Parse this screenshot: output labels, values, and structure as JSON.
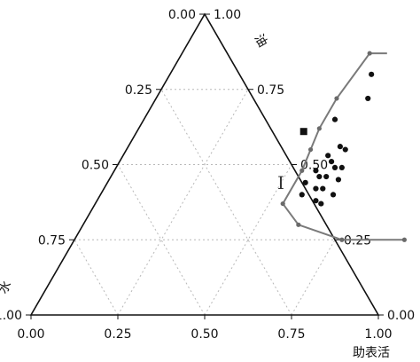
{
  "chart_data": {
    "type": "scatter",
    "subtype": "ternary",
    "axes": {
      "oil": {
        "label": "油",
        "ticks": [
          "0.00",
          "0.25",
          "0.50",
          "0.75",
          "1.00"
        ]
      },
      "water": {
        "label": "水",
        "ticks": [
          "0.00",
          "0.25",
          "0.50",
          "0.75",
          "1.00"
        ]
      },
      "surfactant": {
        "label": "助表活",
        "ticks": [
          "0.00",
          "0.25",
          "0.50",
          "0.75",
          "1.00"
        ]
      }
    },
    "grid": true,
    "grid_style": "dotted",
    "region_label": "I",
    "boundary": [
      {
        "surfactant": 0.54,
        "oil": 0.28
      },
      {
        "surfactant": 0.57,
        "oil": 0.42
      },
      {
        "surfactant": 0.56,
        "oil": 0.52
      },
      {
        "surfactant": 0.53,
        "oil": 0.61
      },
      {
        "surfactant": 0.53,
        "oil": 0.69
      },
      {
        "surfactant": 0.54,
        "oil": 0.75
      },
      {
        "surfactant": 0.69,
        "oil": 0.55
      },
      {
        "surfactant": 0.73,
        "oil": 0.64
      },
      {
        "surfactant": 0.72,
        "oil": 0.75
      },
      {
        "surfactant": 0.75,
        "oil": 0.75
      }
    ],
    "boundary_order": [
      2,
      1,
      0,
      6,
      7,
      8,
      9,
      4,
      3,
      5
    ],
    "boundary_path": [
      {
        "surfactant": 0.59,
        "oil": 0.87
      },
      {
        "surfactant": 0.54,
        "oil": 0.87
      },
      {
        "surfactant": 0.52,
        "oil": 0.72
      },
      {
        "surfactant": 0.52,
        "oil": 0.62
      },
      {
        "surfactant": 0.53,
        "oil": 0.55
      },
      {
        "surfactant": 0.54,
        "oil": 0.48
      },
      {
        "surfactant": 0.54,
        "oil": 0.37
      },
      {
        "surfactant": 0.62,
        "oil": 0.3
      },
      {
        "surfactant": 0.77,
        "oil": 0.25
      },
      {
        "surfactant": 0.95,
        "oil": 0.25
      }
    ],
    "square_point": {
      "surfactant": 0.48,
      "oil": 0.61
    },
    "points": [
      {
        "surfactant": 0.58,
        "oil": 0.8
      },
      {
        "surfactant": 0.61,
        "oil": 0.72
      },
      {
        "surfactant": 0.55,
        "oil": 0.65
      },
      {
        "surfactant": 0.61,
        "oil": 0.56
      },
      {
        "surfactant": 0.63,
        "oil": 0.55
      },
      {
        "surfactant": 0.59,
        "oil": 0.53
      },
      {
        "surfactant": 0.61,
        "oil": 0.51
      },
      {
        "surfactant": 0.63,
        "oil": 0.49
      },
      {
        "surfactant": 0.65,
        "oil": 0.49
      },
      {
        "surfactant": 0.58,
        "oil": 0.48
      },
      {
        "surfactant": 0.6,
        "oil": 0.46
      },
      {
        "surfactant": 0.62,
        "oil": 0.46
      },
      {
        "surfactant": 0.66,
        "oil": 0.45
      },
      {
        "surfactant": 0.57,
        "oil": 0.44
      },
      {
        "surfactant": 0.61,
        "oil": 0.42
      },
      {
        "surfactant": 0.63,
        "oil": 0.42
      },
      {
        "surfactant": 0.67,
        "oil": 0.4
      },
      {
        "surfactant": 0.58,
        "oil": 0.4
      },
      {
        "surfactant": 0.63,
        "oil": 0.38
      },
      {
        "surfactant": 0.65,
        "oil": 0.37
      }
    ],
    "colors": {
      "boundary_line": "#7a7a7a",
      "points": "#111111",
      "boundary_markers": "#6a6a6a",
      "grid": "#b8b8b8",
      "frame": "#111111"
    }
  }
}
